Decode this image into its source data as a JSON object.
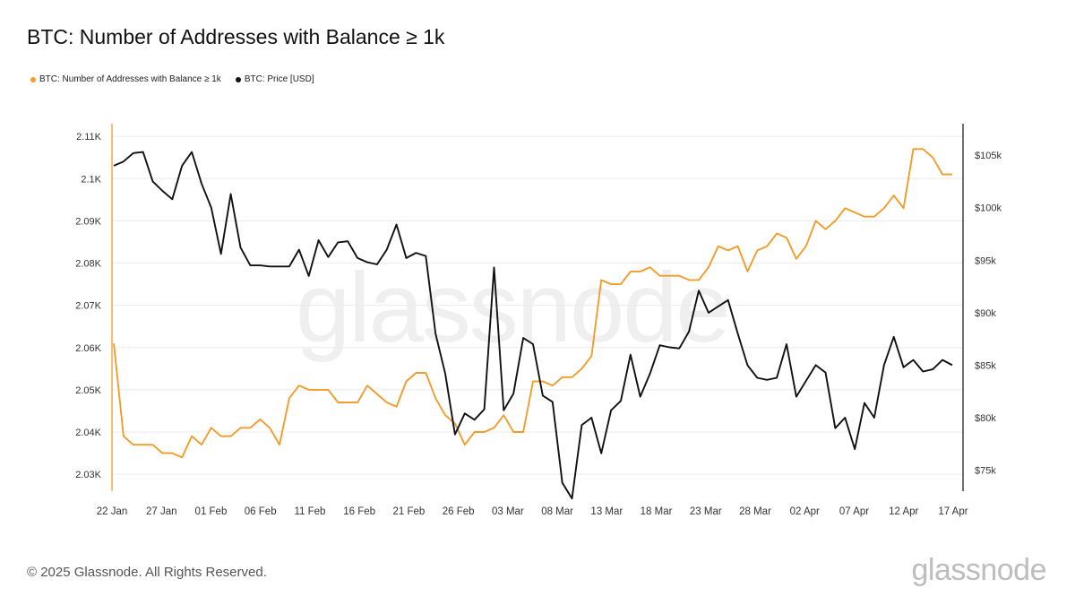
{
  "watermark_text": "glassnode",
  "footer": {
    "copyright": "© 2025 Glassnode. All Rights Reserved.",
    "logo_text": "glassnode"
  },
  "chart_data": {
    "type": "line",
    "title": "BTC: Number of Addresses with Balance ≥ 1k",
    "legend_position": "top-left",
    "grid": "horizontal",
    "x_tick_labels": [
      "22 Jan",
      "27 Jan",
      "01 Feb",
      "06 Feb",
      "11 Feb",
      "16 Feb",
      "21 Feb",
      "26 Feb",
      "03 Mar",
      "08 Mar",
      "13 Mar",
      "18 Mar",
      "23 Mar",
      "28 Mar",
      "02 Apr",
      "07 Apr",
      "12 Apr",
      "17 Apr"
    ],
    "x_range": [
      "2025-01-22",
      "2025-04-18"
    ],
    "left_axis": {
      "ticks": [
        2030,
        2040,
        2050,
        2060,
        2070,
        2080,
        2090,
        2100,
        2110
      ],
      "tick_labels": [
        "2.03K",
        "2.04K",
        "2.05K",
        "2.06K",
        "2.07K",
        "2.08K",
        "2.09K",
        "2.1K",
        "2.11K"
      ],
      "range": [
        2026,
        2113
      ]
    },
    "right_axis": {
      "ticks": [
        75000,
        80000,
        85000,
        90000,
        95000,
        100000,
        105000
      ],
      "tick_labels": [
        "$75k",
        "$80k",
        "$85k",
        "$90k",
        "$95k",
        "$100k",
        "$105k"
      ],
      "range": [
        73000,
        108000
      ]
    },
    "series": [
      {
        "name": "BTC: Number of Addresses with Balance ≥ 1k",
        "axis": "left",
        "color": "#f29c2b",
        "values": [
          2061,
          2039,
          2037,
          2037,
          2037,
          2035,
          2035,
          2034,
          2039,
          2037,
          2041,
          2039,
          2039,
          2041,
          2041,
          2043,
          2041,
          2037,
          2048,
          2051,
          2050,
          2050,
          2050,
          2047,
          2047,
          2047,
          2051,
          2049,
          2047,
          2046,
          2052,
          2054,
          2054,
          2048,
          2044,
          2042,
          2037,
          2040,
          2040,
          2041,
          2044,
          2040,
          2040,
          2052,
          2052,
          2051,
          2053,
          2053,
          2055,
          2058,
          2076,
          2075,
          2075,
          2078,
          2078,
          2079,
          2077,
          2077,
          2077,
          2076,
          2076,
          2079,
          2084,
          2083,
          2084,
          2078,
          2083,
          2084,
          2087,
          2086,
          2081,
          2084,
          2090,
          2088,
          2090,
          2093,
          2092,
          2091,
          2091,
          2093,
          2096,
          2093,
          2107,
          2107,
          2105,
          2101,
          2101
        ]
      },
      {
        "name": "BTC: Price [USD]",
        "axis": "right",
        "color": "#111111",
        "values": [
          104000,
          104400,
          105200,
          105300,
          102500,
          101600,
          100800,
          104000,
          105300,
          102300,
          100000,
          95600,
          101300,
          96200,
          94500,
          94500,
          94400,
          94400,
          94400,
          96000,
          93500,
          96900,
          95300,
          96700,
          96800,
          95200,
          94800,
          94600,
          96000,
          98400,
          95200,
          95700,
          95400,
          88000,
          84200,
          78400,
          80400,
          79800,
          80800,
          94300,
          80700,
          82300,
          87600,
          87000,
          82100,
          81500,
          73800,
          72300,
          79300,
          80000,
          76600,
          80700,
          81600,
          86000,
          82000,
          84200,
          86900,
          86700,
          86600,
          88200,
          92100,
          90000,
          90600,
          91200,
          88000,
          85000,
          83800,
          83600,
          83800,
          87000,
          82000,
          83500,
          85000,
          84300,
          79000,
          80000,
          77000,
          81400,
          80000,
          85000,
          87700,
          84800,
          85500,
          84400,
          84600,
          85500,
          85000
        ]
      }
    ]
  }
}
